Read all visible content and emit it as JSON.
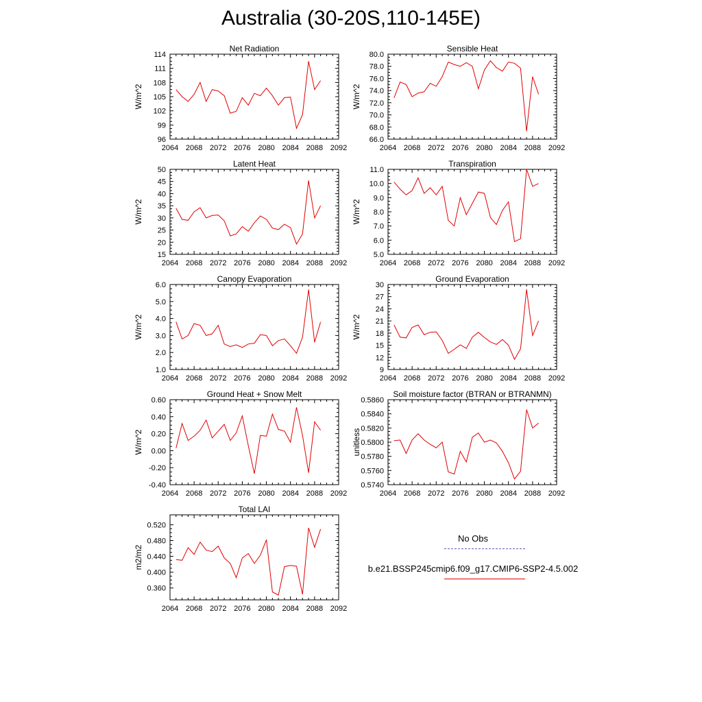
{
  "title": "Australia (30-20S,110-145E)",
  "legend": {
    "obs_label": "No Obs",
    "model_label": "b.e21.BSSP245cmip6.f09_g17.CMIP6-SSP2-4.5.002",
    "obs_color": "#5a5ab4",
    "model_color": "#e00000"
  },
  "chart_data": [
    {
      "type": "line",
      "title": "Net Radiation",
      "ylabel": "W/m^2",
      "xlim": [
        2064,
        2092
      ],
      "xticks": [
        "2064",
        "2068",
        "2072",
        "2076",
        "2080",
        "2084",
        "2088",
        "2092"
      ],
      "ylim": [
        96,
        114
      ],
      "yticks": [
        "96",
        "99",
        "102",
        "105",
        "108",
        "111",
        "114"
      ],
      "ytick_values": [
        96,
        99,
        102,
        105,
        108,
        111,
        114
      ],
      "x": [
        2065,
        2066,
        2067,
        2068,
        2069,
        2070,
        2071,
        2072,
        2073,
        2074,
        2075,
        2076,
        2077,
        2078,
        2079,
        2080,
        2081,
        2082,
        2083,
        2084,
        2085,
        2086,
        2087,
        2088,
        2089
      ],
      "series": [
        {
          "values": [
            106.5,
            105.0,
            104.0,
            105.5,
            108.0,
            104.0,
            106.5,
            106.2,
            105.2,
            101.5,
            101.9,
            104.8,
            103.2,
            105.7,
            105.2,
            106.8,
            105.2,
            103.2,
            104.8,
            104.9,
            98.3,
            101.2,
            112.5,
            106.5,
            108.4
          ]
        }
      ]
    },
    {
      "type": "line",
      "title": "Sensible Heat",
      "ylabel": "W/m^2",
      "xlim": [
        2064,
        2092
      ],
      "xticks": [
        "2064",
        "2068",
        "2072",
        "2076",
        "2080",
        "2084",
        "2088",
        "2092"
      ],
      "ylim": [
        66,
        80
      ],
      "yticks": [
        "66.0",
        "68.0",
        "70.0",
        "72.0",
        "74.0",
        "76.0",
        "78.0",
        "80.0"
      ],
      "ytick_values": [
        66,
        68,
        70,
        72,
        74,
        76,
        78,
        80
      ],
      "x": [
        2065,
        2066,
        2067,
        2068,
        2069,
        2070,
        2071,
        2072,
        2073,
        2074,
        2075,
        2076,
        2077,
        2078,
        2079,
        2080,
        2081,
        2082,
        2083,
        2084,
        2085,
        2086,
        2087,
        2088,
        2089
      ],
      "series": [
        {
          "values": [
            72.8,
            75.4,
            75.0,
            73.0,
            73.6,
            73.8,
            75.2,
            74.7,
            76.3,
            78.7,
            78.3,
            78.0,
            78.6,
            78.0,
            74.3,
            77.4,
            78.9,
            77.8,
            77.2,
            78.7,
            78.5,
            77.7,
            67.3,
            76.3,
            73.4
          ]
        }
      ]
    },
    {
      "type": "line",
      "title": "Latent Heat",
      "ylabel": "W/m^2",
      "xlim": [
        2064,
        2092
      ],
      "xticks": [
        "2064",
        "2068",
        "2072",
        "2076",
        "2080",
        "2084",
        "2088",
        "2092"
      ],
      "ylim": [
        15,
        50
      ],
      "yticks": [
        "15",
        "20",
        "25",
        "30",
        "35",
        "40",
        "45",
        "50"
      ],
      "ytick_values": [
        15,
        20,
        25,
        30,
        35,
        40,
        45,
        50
      ],
      "x": [
        2065,
        2066,
        2067,
        2068,
        2069,
        2070,
        2071,
        2072,
        2073,
        2074,
        2075,
        2076,
        2077,
        2078,
        2079,
        2080,
        2081,
        2082,
        2083,
        2084,
        2085,
        2086,
        2087,
        2088,
        2089
      ],
      "series": [
        {
          "values": [
            34.0,
            29.4,
            29.0,
            32.5,
            34.2,
            30.0,
            31.0,
            31.2,
            28.8,
            22.6,
            23.4,
            26.4,
            24.5,
            28.0,
            30.8,
            29.4,
            25.8,
            25.2,
            27.4,
            26.0,
            19.2,
            23.4,
            45.4,
            30.0,
            35.0
          ]
        }
      ]
    },
    {
      "type": "line",
      "title": "Transpiration",
      "ylabel": "W/m^2",
      "xlim": [
        2064,
        2092
      ],
      "xticks": [
        "2064",
        "2068",
        "2072",
        "2076",
        "2080",
        "2084",
        "2088",
        "2092"
      ],
      "ylim": [
        5,
        11
      ],
      "yticks": [
        "5.0",
        "6.0",
        "7.0",
        "8.0",
        "9.0",
        "10.0",
        "11.0"
      ],
      "ytick_values": [
        5,
        6,
        7,
        8,
        9,
        10,
        11
      ],
      "x": [
        2065,
        2066,
        2067,
        2068,
        2069,
        2070,
        2071,
        2072,
        2073,
        2074,
        2075,
        2076,
        2077,
        2078,
        2079,
        2080,
        2081,
        2082,
        2083,
        2084,
        2085,
        2086,
        2087,
        2088,
        2089
      ],
      "series": [
        {
          "values": [
            10.1,
            9.6,
            9.2,
            9.5,
            10.4,
            9.3,
            9.7,
            9.2,
            9.8,
            7.4,
            7.0,
            9.0,
            7.8,
            8.6,
            9.4,
            9.3,
            7.6,
            7.1,
            8.1,
            8.7,
            5.9,
            6.1,
            11.0,
            9.8,
            10.0
          ]
        }
      ]
    },
    {
      "type": "line",
      "title": "Canopy Evaporation",
      "ylabel": "W/m^2",
      "xlim": [
        2064,
        2092
      ],
      "xticks": [
        "2064",
        "2068",
        "2072",
        "2076",
        "2080",
        "2084",
        "2088",
        "2092"
      ],
      "ylim": [
        1,
        6
      ],
      "yticks": [
        "1.0",
        "2.0",
        "3.0",
        "4.0",
        "5.0",
        "6.0"
      ],
      "ytick_values": [
        1,
        2,
        3,
        4,
        5,
        6
      ],
      "x": [
        2065,
        2066,
        2067,
        2068,
        2069,
        2070,
        2071,
        2072,
        2073,
        2074,
        2075,
        2076,
        2077,
        2078,
        2079,
        2080,
        2081,
        2082,
        2083,
        2084,
        2085,
        2086,
        2087,
        2088,
        2089
      ],
      "series": [
        {
          "values": [
            3.8,
            2.8,
            3.0,
            3.7,
            3.6,
            3.0,
            3.1,
            3.6,
            2.5,
            2.35,
            2.45,
            2.3,
            2.5,
            2.55,
            3.05,
            3.0,
            2.4,
            2.7,
            2.8,
            2.4,
            1.95,
            2.9,
            5.7,
            2.6,
            3.8
          ]
        }
      ]
    },
    {
      "type": "line",
      "title": "Ground Evaporation",
      "ylabel": "W/m^2",
      "xlim": [
        2064,
        2092
      ],
      "xticks": [
        "2064",
        "2068",
        "2072",
        "2076",
        "2080",
        "2084",
        "2088",
        "2092"
      ],
      "ylim": [
        9,
        30
      ],
      "yticks": [
        "9",
        "12",
        "15",
        "18",
        "21",
        "24",
        "27",
        "30"
      ],
      "ytick_values": [
        9,
        12,
        15,
        18,
        21,
        24,
        27,
        30
      ],
      "x": [
        2065,
        2066,
        2067,
        2068,
        2069,
        2070,
        2071,
        2072,
        2073,
        2074,
        2075,
        2076,
        2077,
        2078,
        2079,
        2080,
        2081,
        2082,
        2083,
        2084,
        2085,
        2086,
        2087,
        2088,
        2089
      ],
      "series": [
        {
          "values": [
            20.0,
            17.0,
            16.8,
            19.4,
            20.0,
            17.6,
            18.2,
            18.3,
            16.2,
            13.0,
            14.0,
            15.1,
            14.2,
            17.0,
            18.2,
            16.9,
            15.8,
            15.2,
            16.4,
            15.0,
            11.5,
            14.1,
            28.8,
            17.4,
            21.0
          ]
        }
      ]
    },
    {
      "type": "line",
      "title": "Ground Heat + Snow Melt",
      "ylabel": "W/m^2",
      "xlim": [
        2064,
        2092
      ],
      "xticks": [
        "2064",
        "2068",
        "2072",
        "2076",
        "2080",
        "2084",
        "2088",
        "2092"
      ],
      "ylim": [
        -0.4,
        0.6
      ],
      "yticks": [
        "-0.40",
        "-0.20",
        "0.00",
        "0.20",
        "0.40",
        "0.60"
      ],
      "ytick_values": [
        -0.4,
        -0.2,
        0.0,
        0.2,
        0.4,
        0.6
      ],
      "x": [
        2065,
        2066,
        2067,
        2068,
        2069,
        2070,
        2071,
        2072,
        2073,
        2074,
        2075,
        2076,
        2077,
        2078,
        2079,
        2080,
        2081,
        2082,
        2083,
        2084,
        2085,
        2086,
        2087,
        2088,
        2089
      ],
      "series": [
        {
          "values": [
            0.03,
            0.32,
            0.12,
            0.17,
            0.24,
            0.36,
            0.15,
            0.23,
            0.31,
            0.12,
            0.21,
            0.41,
            0.06,
            -0.27,
            0.18,
            0.17,
            0.43,
            0.25,
            0.23,
            0.1,
            0.51,
            0.18,
            -0.26,
            0.34,
            0.24
          ]
        }
      ]
    },
    {
      "type": "line",
      "title": "Soil moisture factor (BTRAN or BTRANMN)",
      "ylabel": "unitless",
      "xlim": [
        2064,
        2092
      ],
      "xticks": [
        "2064",
        "2068",
        "2072",
        "2076",
        "2080",
        "2084",
        "2088",
        "2092"
      ],
      "ylim": [
        0.574,
        0.586
      ],
      "yticks": [
        "0.5740",
        "0.5760",
        "0.5780",
        "0.5800",
        "0.5820",
        "0.5840",
        "0.5860"
      ],
      "ytick_values": [
        0.574,
        0.576,
        0.578,
        0.58,
        0.582,
        0.584,
        0.586
      ],
      "x": [
        2065,
        2066,
        2067,
        2068,
        2069,
        2070,
        2071,
        2072,
        2073,
        2074,
        2075,
        2076,
        2077,
        2078,
        2079,
        2080,
        2081,
        2082,
        2083,
        2084,
        2085,
        2086,
        2087,
        2088,
        2089
      ],
      "series": [
        {
          "values": [
            0.5802,
            0.5803,
            0.5784,
            0.5803,
            0.5812,
            0.5803,
            0.5797,
            0.5792,
            0.58,
            0.5758,
            0.5755,
            0.5787,
            0.5772,
            0.5807,
            0.5813,
            0.58,
            0.5803,
            0.5799,
            0.5787,
            0.5771,
            0.5748,
            0.5759,
            0.5846,
            0.582,
            0.5827
          ]
        }
      ]
    },
    {
      "type": "line",
      "title": "Total LAI",
      "ylabel": "m2/m2",
      "xlim": [
        2064,
        2092
      ],
      "xticks": [
        "2064",
        "2068",
        "2072",
        "2076",
        "2080",
        "2084",
        "2088",
        "2092"
      ],
      "ylim": [
        0.33,
        0.545
      ],
      "yticks": [
        "0.360",
        "0.400",
        "0.440",
        "0.480",
        "0.520"
      ],
      "ytick_values": [
        0.36,
        0.4,
        0.44,
        0.48,
        0.52
      ],
      "x": [
        2065,
        2066,
        2067,
        2068,
        2069,
        2070,
        2071,
        2072,
        2073,
        2074,
        2075,
        2076,
        2077,
        2078,
        2079,
        2080,
        2081,
        2082,
        2083,
        2084,
        2085,
        2086,
        2087,
        2088,
        2089
      ],
      "series": [
        {
          "values": [
            0.432,
            0.43,
            0.462,
            0.445,
            0.476,
            0.456,
            0.452,
            0.466,
            0.436,
            0.422,
            0.386,
            0.436,
            0.447,
            0.422,
            0.443,
            0.482,
            0.35,
            0.342,
            0.414,
            0.417,
            0.415,
            0.344,
            0.512,
            0.463,
            0.509
          ]
        }
      ]
    }
  ]
}
